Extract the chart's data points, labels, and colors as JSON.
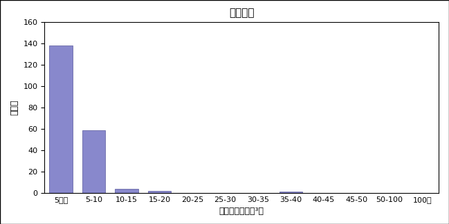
{
  "title": "一般環境",
  "xlabel": "濃度（ｎｇ／ｍ³）",
  "ylabel": "地点数",
  "categories": [
    "5以下",
    "5-10",
    "10-15",
    "15-20",
    "20-25",
    "25-30",
    "30-35",
    "35-40",
    "40-45",
    "45-50",
    "50-100",
    "100超"
  ],
  "values": [
    138,
    59,
    4,
    2,
    0,
    0,
    0,
    1,
    0,
    0,
    0,
    0
  ],
  "bar_color": "#8888cc",
  "bar_edge_color": "#555599",
  "ylim": [
    0,
    160
  ],
  "yticks": [
    0,
    20,
    40,
    60,
    80,
    100,
    120,
    140,
    160
  ],
  "background_color": "#ffffff",
  "title_fontsize": 11,
  "axis_fontsize": 9,
  "tick_fontsize": 8
}
